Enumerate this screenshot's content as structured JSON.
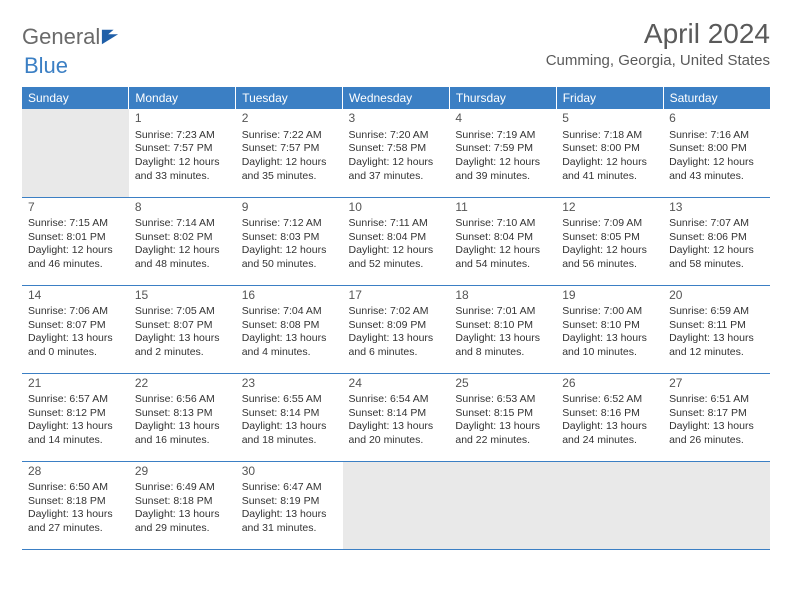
{
  "brand": {
    "part1": "General",
    "part2": "Blue"
  },
  "title": "April 2024",
  "location": "Cumming, Georgia, United States",
  "colors": {
    "header_bg": "#3b7fc4",
    "header_text": "#ffffff",
    "border": "#3b7fc4",
    "empty_bg": "#e9e9e9",
    "body_text": "#333333",
    "title_text": "#5a5a5a"
  },
  "columns": [
    "Sunday",
    "Monday",
    "Tuesday",
    "Wednesday",
    "Thursday",
    "Friday",
    "Saturday"
  ],
  "weeks": [
    [
      {
        "empty": true
      },
      {
        "n": "1",
        "sr": "Sunrise: 7:23 AM",
        "ss": "Sunset: 7:57 PM",
        "d1": "Daylight: 12 hours",
        "d2": "and 33 minutes."
      },
      {
        "n": "2",
        "sr": "Sunrise: 7:22 AM",
        "ss": "Sunset: 7:57 PM",
        "d1": "Daylight: 12 hours",
        "d2": "and 35 minutes."
      },
      {
        "n": "3",
        "sr": "Sunrise: 7:20 AM",
        "ss": "Sunset: 7:58 PM",
        "d1": "Daylight: 12 hours",
        "d2": "and 37 minutes."
      },
      {
        "n": "4",
        "sr": "Sunrise: 7:19 AM",
        "ss": "Sunset: 7:59 PM",
        "d1": "Daylight: 12 hours",
        "d2": "and 39 minutes."
      },
      {
        "n": "5",
        "sr": "Sunrise: 7:18 AM",
        "ss": "Sunset: 8:00 PM",
        "d1": "Daylight: 12 hours",
        "d2": "and 41 minutes."
      },
      {
        "n": "6",
        "sr": "Sunrise: 7:16 AM",
        "ss": "Sunset: 8:00 PM",
        "d1": "Daylight: 12 hours",
        "d2": "and 43 minutes."
      }
    ],
    [
      {
        "n": "7",
        "sr": "Sunrise: 7:15 AM",
        "ss": "Sunset: 8:01 PM",
        "d1": "Daylight: 12 hours",
        "d2": "and 46 minutes."
      },
      {
        "n": "8",
        "sr": "Sunrise: 7:14 AM",
        "ss": "Sunset: 8:02 PM",
        "d1": "Daylight: 12 hours",
        "d2": "and 48 minutes."
      },
      {
        "n": "9",
        "sr": "Sunrise: 7:12 AM",
        "ss": "Sunset: 8:03 PM",
        "d1": "Daylight: 12 hours",
        "d2": "and 50 minutes."
      },
      {
        "n": "10",
        "sr": "Sunrise: 7:11 AM",
        "ss": "Sunset: 8:04 PM",
        "d1": "Daylight: 12 hours",
        "d2": "and 52 minutes."
      },
      {
        "n": "11",
        "sr": "Sunrise: 7:10 AM",
        "ss": "Sunset: 8:04 PM",
        "d1": "Daylight: 12 hours",
        "d2": "and 54 minutes."
      },
      {
        "n": "12",
        "sr": "Sunrise: 7:09 AM",
        "ss": "Sunset: 8:05 PM",
        "d1": "Daylight: 12 hours",
        "d2": "and 56 minutes."
      },
      {
        "n": "13",
        "sr": "Sunrise: 7:07 AM",
        "ss": "Sunset: 8:06 PM",
        "d1": "Daylight: 12 hours",
        "d2": "and 58 minutes."
      }
    ],
    [
      {
        "n": "14",
        "sr": "Sunrise: 7:06 AM",
        "ss": "Sunset: 8:07 PM",
        "d1": "Daylight: 13 hours",
        "d2": "and 0 minutes."
      },
      {
        "n": "15",
        "sr": "Sunrise: 7:05 AM",
        "ss": "Sunset: 8:07 PM",
        "d1": "Daylight: 13 hours",
        "d2": "and 2 minutes."
      },
      {
        "n": "16",
        "sr": "Sunrise: 7:04 AM",
        "ss": "Sunset: 8:08 PM",
        "d1": "Daylight: 13 hours",
        "d2": "and 4 minutes."
      },
      {
        "n": "17",
        "sr": "Sunrise: 7:02 AM",
        "ss": "Sunset: 8:09 PM",
        "d1": "Daylight: 13 hours",
        "d2": "and 6 minutes."
      },
      {
        "n": "18",
        "sr": "Sunrise: 7:01 AM",
        "ss": "Sunset: 8:10 PM",
        "d1": "Daylight: 13 hours",
        "d2": "and 8 minutes."
      },
      {
        "n": "19",
        "sr": "Sunrise: 7:00 AM",
        "ss": "Sunset: 8:10 PM",
        "d1": "Daylight: 13 hours",
        "d2": "and 10 minutes."
      },
      {
        "n": "20",
        "sr": "Sunrise: 6:59 AM",
        "ss": "Sunset: 8:11 PM",
        "d1": "Daylight: 13 hours",
        "d2": "and 12 minutes."
      }
    ],
    [
      {
        "n": "21",
        "sr": "Sunrise: 6:57 AM",
        "ss": "Sunset: 8:12 PM",
        "d1": "Daylight: 13 hours",
        "d2": "and 14 minutes."
      },
      {
        "n": "22",
        "sr": "Sunrise: 6:56 AM",
        "ss": "Sunset: 8:13 PM",
        "d1": "Daylight: 13 hours",
        "d2": "and 16 minutes."
      },
      {
        "n": "23",
        "sr": "Sunrise: 6:55 AM",
        "ss": "Sunset: 8:14 PM",
        "d1": "Daylight: 13 hours",
        "d2": "and 18 minutes."
      },
      {
        "n": "24",
        "sr": "Sunrise: 6:54 AM",
        "ss": "Sunset: 8:14 PM",
        "d1": "Daylight: 13 hours",
        "d2": "and 20 minutes."
      },
      {
        "n": "25",
        "sr": "Sunrise: 6:53 AM",
        "ss": "Sunset: 8:15 PM",
        "d1": "Daylight: 13 hours",
        "d2": "and 22 minutes."
      },
      {
        "n": "26",
        "sr": "Sunrise: 6:52 AM",
        "ss": "Sunset: 8:16 PM",
        "d1": "Daylight: 13 hours",
        "d2": "and 24 minutes."
      },
      {
        "n": "27",
        "sr": "Sunrise: 6:51 AM",
        "ss": "Sunset: 8:17 PM",
        "d1": "Daylight: 13 hours",
        "d2": "and 26 minutes."
      }
    ],
    [
      {
        "n": "28",
        "sr": "Sunrise: 6:50 AM",
        "ss": "Sunset: 8:18 PM",
        "d1": "Daylight: 13 hours",
        "d2": "and 27 minutes."
      },
      {
        "n": "29",
        "sr": "Sunrise: 6:49 AM",
        "ss": "Sunset: 8:18 PM",
        "d1": "Daylight: 13 hours",
        "d2": "and 29 minutes."
      },
      {
        "n": "30",
        "sr": "Sunrise: 6:47 AM",
        "ss": "Sunset: 8:19 PM",
        "d1": "Daylight: 13 hours",
        "d2": "and 31 minutes."
      },
      {
        "empty": true
      },
      {
        "empty": true
      },
      {
        "empty": true
      },
      {
        "empty": true
      }
    ]
  ]
}
